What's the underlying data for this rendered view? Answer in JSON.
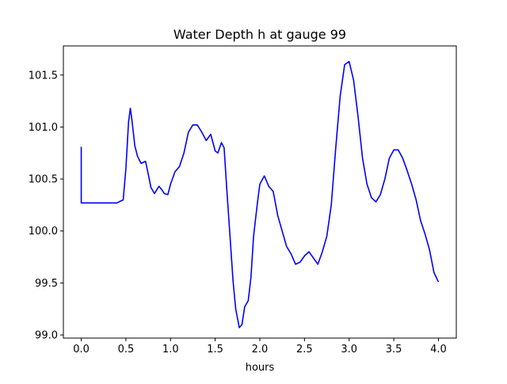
{
  "chart_data": {
    "type": "line",
    "title": "Water Depth h at gauge 99",
    "xlabel": "hours",
    "ylabel": "",
    "xlim": [
      -0.2,
      4.2
    ],
    "ylim": [
      98.97,
      101.78
    ],
    "grid": false,
    "legend": "none",
    "x_ticks": [
      0.0,
      0.5,
      1.0,
      1.5,
      2.0,
      2.5,
      3.0,
      3.5,
      4.0
    ],
    "x_tick_labels": [
      "0.0",
      "0.5",
      "1.0",
      "1.5",
      "2.0",
      "2.5",
      "3.0",
      "3.5",
      "4.0"
    ],
    "y_ticks": [
      99.0,
      99.5,
      100.0,
      100.5,
      101.0,
      101.5
    ],
    "y_tick_labels": [
      "99.0",
      "99.5",
      "100.0",
      "100.5",
      "101.0",
      "101.5"
    ],
    "series": [
      {
        "color": "#0000ff",
        "x": [
          0.0,
          0.0,
          0.1,
          0.2,
          0.3,
          0.4,
          0.47,
          0.5,
          0.53,
          0.55,
          0.57,
          0.6,
          0.63,
          0.67,
          0.72,
          0.75,
          0.78,
          0.82,
          0.87,
          0.9,
          0.93,
          0.97,
          1.0,
          1.05,
          1.1,
          1.15,
          1.2,
          1.25,
          1.3,
          1.35,
          1.4,
          1.45,
          1.5,
          1.53,
          1.57,
          1.6,
          1.63,
          1.67,
          1.7,
          1.73,
          1.77,
          1.8,
          1.83,
          1.87,
          1.9,
          1.93,
          1.97,
          2.0,
          2.05,
          2.1,
          2.15,
          2.2,
          2.25,
          2.3,
          2.35,
          2.4,
          2.45,
          2.5,
          2.55,
          2.6,
          2.65,
          2.7,
          2.75,
          2.8,
          2.85,
          2.9,
          2.95,
          3.0,
          3.05,
          3.1,
          3.15,
          3.2,
          3.25,
          3.3,
          3.35,
          3.4,
          3.45,
          3.5,
          3.55,
          3.6,
          3.65,
          3.7,
          3.75,
          3.8,
          3.85,
          3.9,
          3.95,
          4.0
        ],
        "y": [
          100.81,
          100.27,
          100.27,
          100.27,
          100.27,
          100.27,
          100.3,
          100.6,
          101.05,
          101.18,
          101.05,
          100.82,
          100.72,
          100.65,
          100.67,
          100.55,
          100.42,
          100.36,
          100.43,
          100.4,
          100.36,
          100.35,
          100.45,
          100.57,
          100.62,
          100.75,
          100.95,
          101.02,
          101.02,
          100.95,
          100.87,
          100.93,
          100.77,
          100.75,
          100.85,
          100.8,
          100.4,
          99.9,
          99.52,
          99.25,
          99.07,
          99.1,
          99.27,
          99.33,
          99.55,
          99.95,
          100.25,
          100.45,
          100.53,
          100.43,
          100.38,
          100.15,
          100.0,
          99.85,
          99.78,
          99.68,
          99.7,
          99.76,
          99.8,
          99.74,
          99.68,
          99.8,
          99.95,
          100.25,
          100.8,
          101.3,
          101.6,
          101.63,
          101.45,
          101.1,
          100.7,
          100.45,
          100.32,
          100.28,
          100.35,
          100.5,
          100.7,
          100.78,
          100.78,
          100.7,
          100.58,
          100.45,
          100.3,
          100.1,
          99.97,
          99.82,
          99.6,
          99.51
        ]
      }
    ]
  }
}
